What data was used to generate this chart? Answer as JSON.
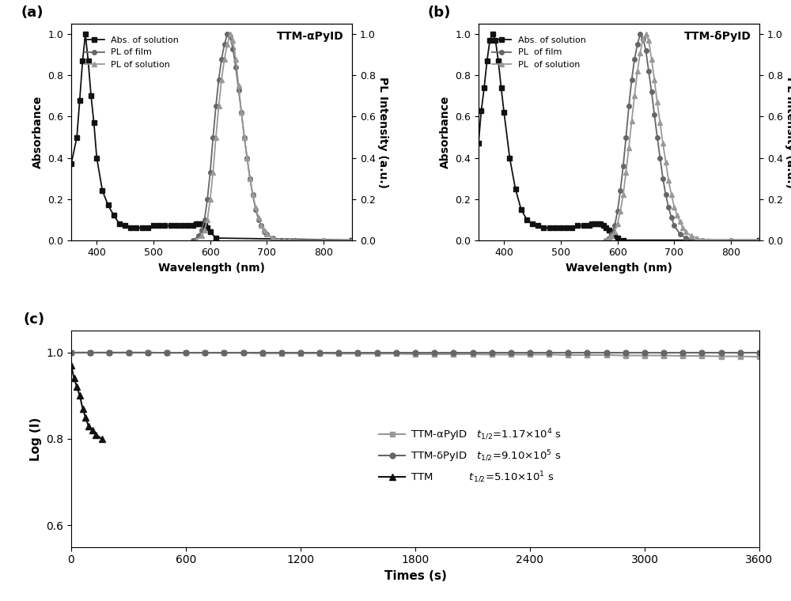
{
  "panel_a_label": "(a)",
  "panel_b_label": "(b)",
  "panel_c_label": "(c)",
  "title_a": "TTM-αPyID",
  "title_b": "TTM-δPyID",
  "xlabel_ab": "Wavelength (nm)",
  "ylabel_abs": "Absorbance",
  "ylabel_pl": "PL Intensity (a.u.)",
  "xlabel_c": "Times (s)",
  "ylabel_c": "Log (I)",
  "legend_abs_a": "Abs. of solution",
  "legend_pl_film_a": "PL of film",
  "legend_pl_sol_a": "PL of solution",
  "legend_abs_b": "Abs. of solution",
  "legend_pl_film_b": "PL  of film",
  "legend_pl_sol_b": "PL  of solution",
  "xlim_ab": [
    355,
    850
  ],
  "ylim_ab": [
    0.0,
    1.05
  ],
  "xticks_ab": [
    400,
    500,
    600,
    700,
    800
  ],
  "yticks_ab": [
    0.0,
    0.2,
    0.4,
    0.6,
    0.8,
    1.0
  ],
  "xlim_c": [
    0,
    3600
  ],
  "ylim_c": [
    0.55,
    1.05
  ],
  "xticks_c": [
    0,
    600,
    1200,
    1800,
    2400,
    3000,
    3600
  ],
  "yticks_c": [
    0.6,
    0.8,
    1.0
  ],
  "color_abs": "#111111",
  "color_pl_film": "#666666",
  "color_pl_sol": "#999999",
  "color_alpha": "#999999",
  "color_delta": "#666666",
  "color_ttm": "#111111",
  "legend_alpha": "TTM-αPyID",
  "legend_delta": "TTM-δPyID",
  "legend_ttm": "TTM",
  "abs_a_x": [
    355,
    365,
    370,
    375,
    380,
    385,
    390,
    395,
    400,
    410,
    420,
    430,
    440,
    450,
    460,
    470,
    480,
    490,
    500,
    510,
    520,
    530,
    540,
    550,
    560,
    570,
    575,
    580,
    585,
    590,
    595,
    600,
    610,
    850
  ],
  "abs_a_y": [
    0.37,
    0.5,
    0.68,
    0.87,
    1.0,
    0.87,
    0.7,
    0.57,
    0.4,
    0.24,
    0.17,
    0.12,
    0.08,
    0.07,
    0.06,
    0.06,
    0.06,
    0.06,
    0.07,
    0.07,
    0.07,
    0.07,
    0.07,
    0.07,
    0.07,
    0.07,
    0.08,
    0.08,
    0.08,
    0.07,
    0.06,
    0.04,
    0.01,
    0.0
  ],
  "pl_film_a_x": [
    570,
    580,
    585,
    590,
    595,
    600,
    605,
    610,
    615,
    620,
    625,
    630,
    635,
    640,
    645,
    650,
    655,
    660,
    665,
    670,
    675,
    680,
    685,
    690,
    695,
    700,
    710,
    720,
    730,
    740,
    750,
    800,
    850
  ],
  "pl_film_a_y": [
    0.0,
    0.02,
    0.05,
    0.1,
    0.2,
    0.33,
    0.5,
    0.65,
    0.78,
    0.88,
    0.95,
    1.0,
    0.99,
    0.93,
    0.84,
    0.73,
    0.62,
    0.5,
    0.4,
    0.3,
    0.22,
    0.15,
    0.1,
    0.07,
    0.04,
    0.03,
    0.01,
    0.0,
    0.0,
    0.0,
    0.0,
    0.0,
    0.0
  ],
  "pl_sol_a_x": [
    575,
    585,
    590,
    595,
    600,
    605,
    610,
    615,
    620,
    625,
    630,
    635,
    640,
    645,
    650,
    655,
    660,
    665,
    670,
    675,
    680,
    685,
    690,
    695,
    700,
    710,
    720,
    730,
    740,
    800,
    850
  ],
  "pl_sol_a_y": [
    0.0,
    0.02,
    0.05,
    0.1,
    0.2,
    0.33,
    0.5,
    0.65,
    0.78,
    0.88,
    0.95,
    1.0,
    0.97,
    0.88,
    0.75,
    0.62,
    0.5,
    0.4,
    0.3,
    0.22,
    0.16,
    0.11,
    0.07,
    0.05,
    0.03,
    0.01,
    0.0,
    0.0,
    0.0,
    0.0,
    0.0
  ],
  "abs_b_x": [
    355,
    360,
    365,
    370,
    375,
    380,
    385,
    390,
    395,
    400,
    410,
    420,
    430,
    440,
    450,
    460,
    470,
    480,
    490,
    500,
    510,
    520,
    530,
    540,
    550,
    555,
    560,
    565,
    570,
    575,
    580,
    585,
    590,
    595,
    600,
    610,
    850
  ],
  "abs_b_y": [
    0.47,
    0.63,
    0.74,
    0.87,
    0.97,
    1.0,
    0.97,
    0.87,
    0.74,
    0.62,
    0.4,
    0.25,
    0.15,
    0.1,
    0.08,
    0.07,
    0.06,
    0.06,
    0.06,
    0.06,
    0.06,
    0.06,
    0.07,
    0.07,
    0.07,
    0.08,
    0.08,
    0.08,
    0.08,
    0.07,
    0.06,
    0.05,
    0.04,
    0.02,
    0.01,
    0.0,
    0.0
  ],
  "pl_film_b_x": [
    580,
    585,
    590,
    595,
    600,
    605,
    610,
    615,
    620,
    625,
    630,
    635,
    640,
    645,
    650,
    655,
    660,
    665,
    670,
    675,
    680,
    685,
    690,
    695,
    700,
    710,
    720,
    730,
    740,
    750,
    800,
    850
  ],
  "pl_film_b_y": [
    0.0,
    0.01,
    0.03,
    0.07,
    0.14,
    0.24,
    0.36,
    0.5,
    0.65,
    0.78,
    0.88,
    0.95,
    1.0,
    0.98,
    0.92,
    0.82,
    0.72,
    0.61,
    0.5,
    0.4,
    0.3,
    0.22,
    0.16,
    0.11,
    0.07,
    0.03,
    0.01,
    0.0,
    0.0,
    0.0,
    0.0,
    0.0
  ],
  "pl_sol_b_x": [
    580,
    585,
    590,
    595,
    600,
    605,
    610,
    615,
    620,
    625,
    630,
    635,
    640,
    645,
    650,
    655,
    660,
    665,
    670,
    675,
    680,
    685,
    690,
    695,
    700,
    705,
    710,
    715,
    720,
    730,
    740,
    750,
    760,
    800,
    850
  ],
  "pl_sol_b_y": [
    0.0,
    0.01,
    0.02,
    0.04,
    0.08,
    0.14,
    0.22,
    0.33,
    0.45,
    0.58,
    0.7,
    0.82,
    0.91,
    0.98,
    1.0,
    0.97,
    0.88,
    0.78,
    0.67,
    0.57,
    0.47,
    0.38,
    0.29,
    0.22,
    0.16,
    0.12,
    0.09,
    0.06,
    0.04,
    0.02,
    0.01,
    0.0,
    0.0,
    0.0,
    0.0
  ],
  "c_alpha_x": [
    0,
    100,
    200,
    300,
    400,
    500,
    600,
    700,
    800,
    900,
    1000,
    1100,
    1200,
    1300,
    1400,
    1500,
    1600,
    1700,
    1800,
    1900,
    2000,
    2100,
    2200,
    2300,
    2400,
    2500,
    2600,
    2700,
    2800,
    2900,
    3000,
    3100,
    3200,
    3300,
    3400,
    3500,
    3600
  ],
  "c_alpha_y": [
    1.0,
    1.0,
    1.0,
    1.0,
    1.0,
    0.999,
    0.999,
    0.999,
    0.999,
    0.999,
    0.998,
    0.998,
    0.998,
    0.998,
    0.997,
    0.997,
    0.997,
    0.997,
    0.996,
    0.996,
    0.996,
    0.996,
    0.995,
    0.995,
    0.995,
    0.995,
    0.994,
    0.994,
    0.994,
    0.993,
    0.993,
    0.993,
    0.992,
    0.992,
    0.991,
    0.991,
    0.99
  ],
  "c_delta_x": [
    0,
    100,
    200,
    300,
    400,
    500,
    600,
    700,
    800,
    900,
    1000,
    1100,
    1200,
    1300,
    1400,
    1500,
    1600,
    1700,
    1800,
    1900,
    2000,
    2100,
    2200,
    2300,
    2400,
    2500,
    2600,
    2700,
    2800,
    2900,
    3000,
    3100,
    3200,
    3300,
    3400,
    3500,
    3600
  ],
  "c_delta_y": [
    1.0,
    1.0,
    1.0,
    1.0,
    1.0,
    1.0,
    1.0,
    1.0,
    1.0,
    1.0,
    1.0,
    1.0,
    1.0,
    1.0,
    1.0,
    1.0,
    1.0,
    1.0,
    1.0,
    1.0,
    1.0,
    1.0,
    1.0,
    1.0,
    1.0,
    1.0,
    1.0,
    1.0,
    1.0,
    1.0,
    1.0,
    1.0,
    1.0,
    1.0,
    1.0,
    1.0,
    1.0
  ],
  "c_ttm_x": [
    0,
    15,
    30,
    45,
    60,
    75,
    90,
    110,
    130,
    160
  ],
  "c_ttm_y": [
    0.97,
    0.94,
    0.92,
    0.9,
    0.87,
    0.85,
    0.83,
    0.82,
    0.81,
    0.8
  ]
}
